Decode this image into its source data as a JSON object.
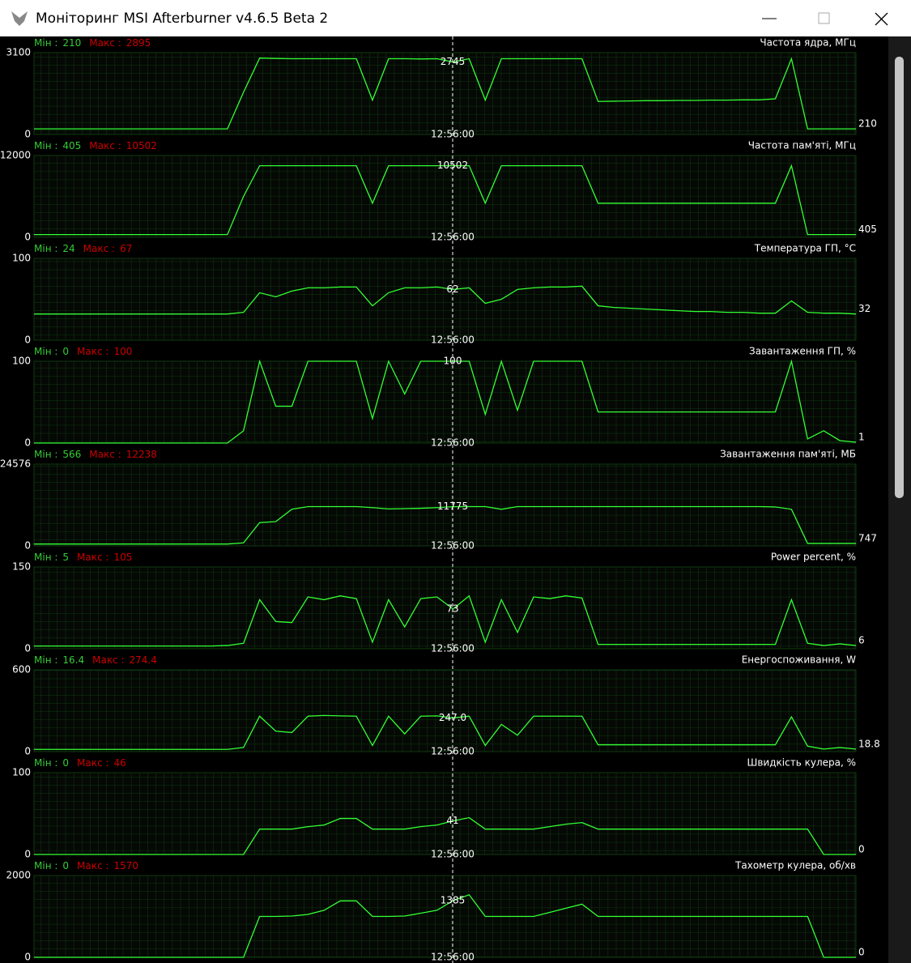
{
  "window_title": "Моніторинг MSI Afterburner v4.6.5 Beta 2",
  "min_label": "Мін :",
  "max_label": "Макс :",
  "cursor_time": "12:56:00",
  "graphs": [
    {
      "title": "Частота ядра, МГц",
      "min": 210,
      "max": 2895,
      "ylim": [
        0,
        3100
      ],
      "cursor_value": 2745,
      "current": 210,
      "values": [
        210,
        210,
        210,
        210,
        210,
        210,
        210,
        210,
        210,
        210,
        210,
        210,
        210,
        1600,
        2895,
        2880,
        2870,
        2870,
        2870,
        2870,
        2870,
        1300,
        2870,
        2870,
        2860,
        2870,
        2745,
        2870,
        1300,
        2870,
        2870,
        2870,
        2870,
        2870,
        2870,
        1250,
        1260,
        1270,
        1280,
        1280,
        1290,
        1290,
        1300,
        1300,
        1310,
        1310,
        1350,
        2870,
        210,
        210,
        210,
        210
      ]
    },
    {
      "title": "Частота пам'яті, МГц",
      "min": 405,
      "max": 10502,
      "ylim": [
        0,
        12000
      ],
      "cursor_value": 10502,
      "current": 405,
      "values": [
        405,
        405,
        405,
        405,
        405,
        405,
        405,
        405,
        405,
        405,
        405,
        405,
        405,
        6000,
        10502,
        10502,
        10502,
        10502,
        10502,
        10502,
        10502,
        5000,
        10502,
        10502,
        10502,
        10502,
        10502,
        10502,
        5000,
        10502,
        10502,
        10502,
        10502,
        10502,
        10502,
        5000,
        5000,
        5000,
        5000,
        5000,
        5000,
        5000,
        5000,
        5000,
        5000,
        5000,
        5000,
        10502,
        405,
        405,
        405,
        405
      ]
    },
    {
      "title": "Температура ГП, °C",
      "min": 24,
      "max": 67,
      "ylim": [
        0,
        100
      ],
      "cursor_value": 62,
      "current": 32,
      "values": [
        32,
        32,
        32,
        32,
        32,
        32,
        32,
        32,
        32,
        32,
        32,
        32,
        32,
        34,
        58,
        53,
        60,
        64,
        64,
        65,
        65,
        42,
        58,
        64,
        64,
        65,
        62,
        64,
        45,
        50,
        62,
        64,
        65,
        65,
        66,
        42,
        40,
        39,
        38,
        37,
        36,
        35,
        35,
        34,
        34,
        33,
        33,
        48,
        34,
        33,
        33,
        32
      ]
    },
    {
      "title": "Завантаження ГП, %",
      "min": 0,
      "max": 100,
      "ylim": [
        0,
        100
      ],
      "cursor_value": 100,
      "current": 1,
      "values": [
        0,
        0,
        0,
        0,
        0,
        0,
        0,
        0,
        0,
        0,
        0,
        0,
        0,
        15,
        100,
        45,
        45,
        100,
        100,
        100,
        100,
        30,
        100,
        60,
        100,
        100,
        100,
        100,
        35,
        100,
        40,
        100,
        100,
        100,
        100,
        38,
        38,
        38,
        38,
        38,
        38,
        38,
        38,
        38,
        38,
        38,
        38,
        100,
        5,
        15,
        3,
        1
      ]
    },
    {
      "title": "Завантаження пам'яті, МБ",
      "min": 566,
      "max": 12238,
      "ylim": [
        0,
        24576
      ],
      "cursor_value": 11775,
      "current": 747,
      "values": [
        566,
        566,
        566,
        566,
        566,
        566,
        566,
        566,
        566,
        566,
        566,
        566,
        566,
        900,
        7000,
        7300,
        11000,
        11800,
        11800,
        11800,
        11800,
        11500,
        11100,
        11200,
        11300,
        11500,
        11775,
        11800,
        11800,
        11000,
        11800,
        11800,
        11800,
        11800,
        11800,
        11800,
        11800,
        11800,
        11800,
        11800,
        11800,
        11800,
        11800,
        11800,
        11800,
        11800,
        11700,
        11000,
        747,
        747,
        747,
        747
      ]
    },
    {
      "title": "Power percent, %",
      "min": 5,
      "max": 105,
      "ylim": [
        0,
        150
      ],
      "cursor_value": 73,
      "current": 6,
      "values": [
        5,
        5,
        5,
        5,
        5,
        5,
        5,
        5,
        5,
        5,
        5,
        5,
        6,
        10,
        90,
        50,
        48,
        95,
        90,
        97,
        92,
        12,
        90,
        40,
        92,
        95,
        73,
        97,
        12,
        90,
        30,
        95,
        92,
        97,
        93,
        8,
        8,
        8,
        8,
        8,
        8,
        8,
        8,
        8,
        8,
        8,
        8,
        90,
        10,
        6,
        9,
        6
      ]
    },
    {
      "title": "Енергоспоживання, W",
      "min": 16.4,
      "max": 274.4,
      "ylim": [
        0,
        600
      ],
      "cursor_value": {
        "value": 247,
        "label": "247.0"
      },
      "current": 18.8,
      "values": [
        16.4,
        16.4,
        16.4,
        16.4,
        16.4,
        16.4,
        16.4,
        16.4,
        16.4,
        16.4,
        16.4,
        16.4,
        16.4,
        30,
        260,
        150,
        140,
        260,
        265,
        262,
        260,
        45,
        260,
        130,
        260,
        262,
        247,
        260,
        45,
        200,
        120,
        260,
        260,
        260,
        260,
        50,
        50,
        50,
        50,
        50,
        50,
        50,
        50,
        50,
        50,
        50,
        50,
        255,
        40,
        18.8,
        30,
        18.8
      ]
    },
    {
      "title": "Швидкість кулера, %",
      "min": 0,
      "max": 46,
      "ylim": [
        0,
        100
      ],
      "cursor_value": 41,
      "current": 0,
      "values": [
        0,
        0,
        0,
        0,
        0,
        0,
        0,
        0,
        0,
        0,
        0,
        0,
        0,
        0,
        31,
        31,
        31,
        34,
        36,
        44,
        44,
        31,
        31,
        31,
        34,
        36,
        41,
        45,
        31,
        31,
        31,
        31,
        34,
        37,
        39,
        31,
        31,
        31,
        31,
        31,
        31,
        31,
        31,
        31,
        31,
        31,
        31,
        31,
        31,
        0,
        0,
        0
      ]
    },
    {
      "title": "Тахометр кулера, об/хв",
      "min": 0,
      "max": 1570,
      "ylim": [
        0,
        2000
      ],
      "cursor_value": 1385,
      "current": 0,
      "values": [
        0,
        0,
        0,
        0,
        0,
        0,
        0,
        0,
        0,
        0,
        0,
        0,
        0,
        0,
        1000,
        1000,
        1010,
        1050,
        1150,
        1380,
        1380,
        1000,
        1000,
        1010,
        1080,
        1150,
        1385,
        1530,
        1000,
        1000,
        1000,
        1000,
        1100,
        1200,
        1300,
        1000,
        1000,
        1000,
        1000,
        1000,
        1000,
        1000,
        1000,
        1000,
        1000,
        1000,
        1000,
        1000,
        1000,
        0,
        0,
        0
      ]
    }
  ]
}
